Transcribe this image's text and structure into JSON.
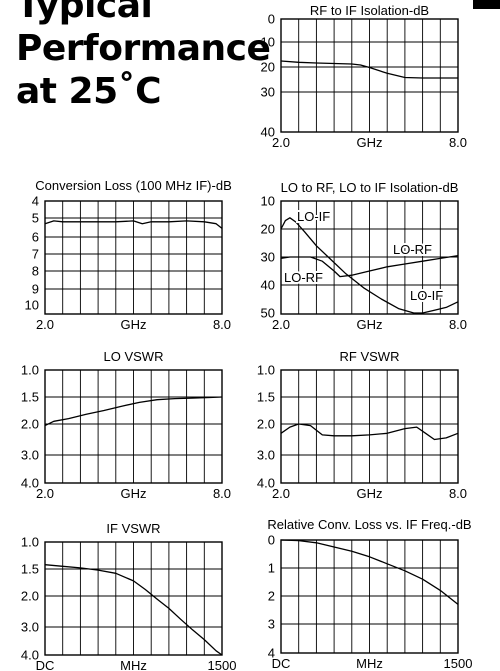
{
  "heading": {
    "line1": "Typical",
    "line2": "Performance",
    "line3": "at 25˚C"
  },
  "chart_data": [
    {
      "id": "rf-if-isolation",
      "type": "line",
      "title": "RF to IF Isolation-dB",
      "xlabel": "GHz",
      "x_tick_labels": [
        "2.0",
        "8.0"
      ],
      "xlim": [
        2.0,
        8.0
      ],
      "y_tick_labels": [
        "0",
        "10",
        "20",
        "30",
        "40"
      ],
      "y_tick_values": [
        0,
        10,
        20,
        30,
        40
      ],
      "ylim": [
        0,
        40
      ],
      "y_inverted": true,
      "grid": true,
      "series": [
        {
          "x": [
            2.0,
            2.6,
            3.2,
            3.8,
            4.4,
            4.7,
            5.0,
            5.6,
            6.2,
            6.8,
            7.4,
            8.0
          ],
          "y": [
            17.6,
            18.1,
            18.4,
            18.6,
            18.8,
            19.2,
            20.2,
            22.5,
            24.2,
            24.4,
            24.4,
            24.4
          ]
        }
      ]
    },
    {
      "id": "conversion-loss",
      "type": "line",
      "title": "Conversion Loss (100 MHz IF)-dB",
      "xlabel": "GHz",
      "x_tick_labels": [
        "2.0",
        "8.0"
      ],
      "xlim": [
        2.0,
        8.0
      ],
      "y_tick_labels": [
        "4",
        "5",
        "6",
        "7",
        "8",
        "9",
        "10"
      ],
      "y_tick_values": [
        4,
        5,
        6,
        7,
        8,
        9,
        10
      ],
      "ylim": [
        4,
        10
      ],
      "y_inverted": true,
      "grid": true,
      "series": [
        {
          "x": [
            2.0,
            2.3,
            2.6,
            3.2,
            3.8,
            4.4,
            5.0,
            5.3,
            5.6,
            6.2,
            6.8,
            7.4,
            7.8,
            8.0
          ],
          "y": [
            5.3,
            5.15,
            5.2,
            5.2,
            5.2,
            5.2,
            5.15,
            5.3,
            5.2,
            5.2,
            5.15,
            5.2,
            5.3,
            5.55
          ]
        }
      ]
    },
    {
      "id": "lo-isolation",
      "type": "line",
      "title": "LO to RF, LO to IF Isolation-dB",
      "xlabel": "GHz",
      "x_tick_labels": [
        "2.0",
        "8.0"
      ],
      "xlim": [
        2.0,
        8.0
      ],
      "y_tick_labels": [
        "10",
        "20",
        "30",
        "40",
        "50"
      ],
      "y_tick_values": [
        10,
        20,
        30,
        40,
        50
      ],
      "ylim": [
        10,
        50
      ],
      "y_inverted": true,
      "grid": true,
      "series": [
        {
          "name": "LO-IF",
          "x": [
            2.0,
            2.15,
            2.3,
            2.5,
            2.8,
            3.2,
            3.6,
            4.2,
            4.8,
            5.4,
            6.0,
            6.5,
            6.8,
            7.2,
            7.6,
            8.0
          ],
          "y": [
            20,
            17,
            16,
            17.5,
            21,
            26,
            30,
            36,
            41,
            45,
            48.5,
            50,
            50,
            49,
            48,
            46
          ]
        },
        {
          "name": "LO-RF",
          "x": [
            2.0,
            2.3,
            2.6,
            3.0,
            3.4,
            3.8,
            4.0,
            4.4,
            5.0,
            5.6,
            6.2,
            6.8,
            7.4,
            8.0
          ],
          "y": [
            30.5,
            30,
            30,
            30,
            31.5,
            35,
            37,
            36.5,
            35,
            33.5,
            32.5,
            31.5,
            30.5,
            29.5
          ]
        }
      ],
      "annotations": [
        "LO-IF",
        "LO-RF",
        "LO-RF",
        "LO-IF"
      ]
    },
    {
      "id": "lo-vswr",
      "type": "line",
      "title": "LO VSWR",
      "xlabel": "GHz",
      "x_tick_labels": [
        "2.0",
        "8.0"
      ],
      "xlim": [
        2.0,
        8.0
      ],
      "y_tick_labels": [
        "1.0",
        "1.5",
        "2.0",
        "3.0",
        "4.0"
      ],
      "y_tick_values": [
        1.0,
        1.5,
        2.0,
        3.0,
        4.0
      ],
      "ylim": [
        1.0,
        4.0
      ],
      "y_inverted": true,
      "grid": true,
      "series": [
        {
          "x": [
            2.0,
            2.3,
            2.8,
            3.4,
            4.0,
            4.6,
            5.2,
            5.8,
            6.4,
            7.0,
            7.6,
            8.0
          ],
          "y": [
            2.05,
            1.95,
            1.9,
            1.82,
            1.75,
            1.67,
            1.6,
            1.55,
            1.53,
            1.52,
            1.51,
            1.5
          ]
        }
      ]
    },
    {
      "id": "rf-vswr",
      "type": "line",
      "title": "RF VSWR",
      "xlabel": "GHz",
      "x_tick_labels": [
        "2.0",
        "8.0"
      ],
      "xlim": [
        2.0,
        8.0
      ],
      "y_tick_labels": [
        "1.0",
        "1.5",
        "2.0",
        "3.0",
        "4.0"
      ],
      "y_tick_values": [
        1.0,
        1.5,
        2.0,
        3.0,
        4.0
      ],
      "ylim": [
        1.0,
        4.0
      ],
      "y_inverted": true,
      "grid": true,
      "series": [
        {
          "x": [
            2.0,
            2.3,
            2.6,
            3.0,
            3.4,
            3.8,
            4.4,
            5.0,
            5.6,
            6.2,
            6.6,
            6.9,
            7.2,
            7.6,
            8.0
          ],
          "y": [
            2.3,
            2.1,
            2.0,
            2.05,
            2.35,
            2.38,
            2.38,
            2.35,
            2.3,
            2.15,
            2.1,
            2.3,
            2.5,
            2.45,
            2.3
          ]
        }
      ]
    },
    {
      "id": "if-vswr",
      "type": "line",
      "title": "IF VSWR",
      "xlabel": "MHz",
      "x_tick_labels": [
        "DC",
        "1500"
      ],
      "xlim": [
        0,
        1500
      ],
      "y_tick_labels": [
        "1.0",
        "1.5",
        "2.0",
        "3.0",
        "4.0"
      ],
      "y_tick_values": [
        1.0,
        1.5,
        2.0,
        3.0,
        4.0
      ],
      "ylim": [
        1.0,
        4.0
      ],
      "y_inverted": true,
      "grid": true,
      "series": [
        {
          "x": [
            0,
            150,
            300,
            450,
            600,
            750,
            850,
            950,
            1050,
            1150,
            1250,
            1350,
            1450,
            1500
          ],
          "y": [
            1.42,
            1.45,
            1.48,
            1.52,
            1.58,
            1.72,
            1.88,
            2.1,
            2.4,
            2.75,
            3.1,
            3.45,
            3.85,
            4.0
          ]
        }
      ]
    },
    {
      "id": "relative-conv-loss",
      "type": "line",
      "title": "Relative Conv. Loss vs. IF Freq.-dB",
      "xlabel": "MHz",
      "x_tick_labels": [
        "DC",
        "1500"
      ],
      "xlim": [
        0,
        1500
      ],
      "y_tick_labels": [
        "0",
        "1",
        "2",
        "3",
        "4"
      ],
      "y_tick_values": [
        0,
        1,
        2,
        3,
        4
      ],
      "ylim": [
        0,
        4
      ],
      "y_inverted": true,
      "grid": true,
      "series": [
        {
          "x": [
            0,
            150,
            300,
            450,
            600,
            750,
            900,
            1050,
            1200,
            1350,
            1500
          ],
          "y": [
            0,
            0.02,
            0.1,
            0.25,
            0.4,
            0.6,
            0.85,
            1.1,
            1.4,
            1.8,
            2.3
          ]
        }
      ]
    }
  ]
}
